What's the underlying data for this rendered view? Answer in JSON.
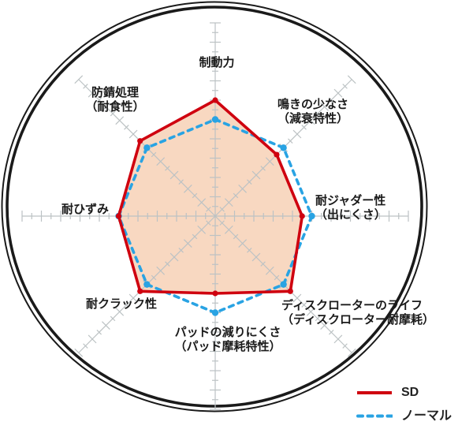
{
  "chart_data": {
    "type": "radar",
    "axes_count": 8,
    "scale": {
      "min": 0,
      "max": 10,
      "major_step": 1,
      "minor_step": 0.5
    },
    "grid": true,
    "legend_position": "bottom-right",
    "categories": [
      {
        "label": "制動力",
        "sub": ""
      },
      {
        "label": "鳴きの少なさ",
        "sub": "（減衰特性）"
      },
      {
        "label": "耐ジャダー性",
        "sub": "（出にくさ）"
      },
      {
        "label": "ディスクローターのライフ",
        "sub": "（ディスクローター耐摩耗）"
      },
      {
        "label": "パッドの減りにくさ",
        "sub": "（パッド摩耗特性）"
      },
      {
        "label": "耐クラック性",
        "sub": ""
      },
      {
        "label": "耐ひずみ",
        "sub": ""
      },
      {
        "label": "防錆処理",
        "sub": "（耐食性）"
      }
    ],
    "series": [
      {
        "name": "SD",
        "style": "solid",
        "color": "#cf000f",
        "fill": "#f8d8c1",
        "values": [
          6,
          4.5,
          4.5,
          5.5,
          4,
          5.5,
          5,
          5.5
        ]
      },
      {
        "name": "ノーマル",
        "style": "dashed",
        "color": "#29a3e3",
        "fill": "",
        "values": [
          5,
          5,
          5,
          5,
          5,
          5,
          5,
          5
        ]
      }
    ]
  },
  "colors": {
    "axis": "#bcc2c4",
    "ring": "#1a1a1a",
    "text": "#1a1a1a"
  }
}
